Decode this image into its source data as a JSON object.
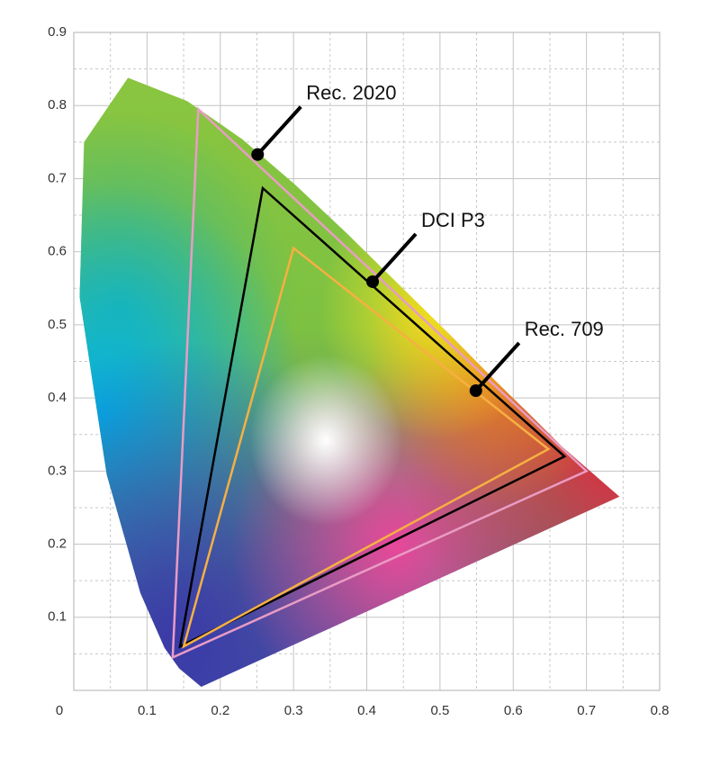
{
  "chart_data": {
    "type": "line",
    "xlim": [
      0,
      0.8
    ],
    "ylim": [
      0,
      0.9
    ],
    "xticks": [
      0,
      0.1,
      0.2,
      0.3,
      0.4,
      0.5,
      0.6,
      0.7,
      0.8
    ],
    "yticks": [
      0.1,
      0.2,
      0.3,
      0.4,
      0.5,
      0.6,
      0.7,
      0.8,
      0.9
    ],
    "x_minor_grid": [
      0.05,
      0.15,
      0.25,
      0.35,
      0.45,
      0.55,
      0.65,
      0.75
    ],
    "y_minor_grid": [
      0.05,
      0.15,
      0.25,
      0.35,
      0.45,
      0.55,
      0.65,
      0.75,
      0.85
    ],
    "grid": true,
    "spectral_locus": {
      "x": [
        0.174,
        0.144,
        0.124,
        0.091,
        0.045,
        0.008,
        0.014,
        0.074,
        0.155,
        0.23,
        0.302,
        0.373,
        0.444,
        0.513,
        0.575,
        0.627,
        0.666,
        0.745
      ],
      "y": [
        0.005,
        0.03,
        0.058,
        0.133,
        0.295,
        0.538,
        0.75,
        0.838,
        0.806,
        0.754,
        0.692,
        0.625,
        0.555,
        0.487,
        0.424,
        0.373,
        0.334,
        0.265
      ]
    },
    "series": [
      {
        "name": "Rec. 2020",
        "color": "#e99cc4",
        "x": [
          0.17,
          0.7,
          0.135
        ],
        "y": [
          0.795,
          0.3,
          0.045
        ]
      },
      {
        "name": "DCI P3",
        "color": "#000000",
        "x": [
          0.258,
          0.67,
          0.145
        ],
        "y": [
          0.687,
          0.32,
          0.06
        ]
      },
      {
        "name": "Rec. 709",
        "color": "#f6b042",
        "x": [
          0.3,
          0.648,
          0.15
        ],
        "y": [
          0.605,
          0.33,
          0.06
        ]
      }
    ],
    "annotations": [
      {
        "text": "Rec. 2020",
        "point": [
          0.251,
          0.733
        ]
      },
      {
        "text": "DCI P3",
        "point": [
          0.408,
          0.559
        ]
      },
      {
        "text": "Rec. 709",
        "point": [
          0.549,
          0.41
        ]
      }
    ]
  }
}
